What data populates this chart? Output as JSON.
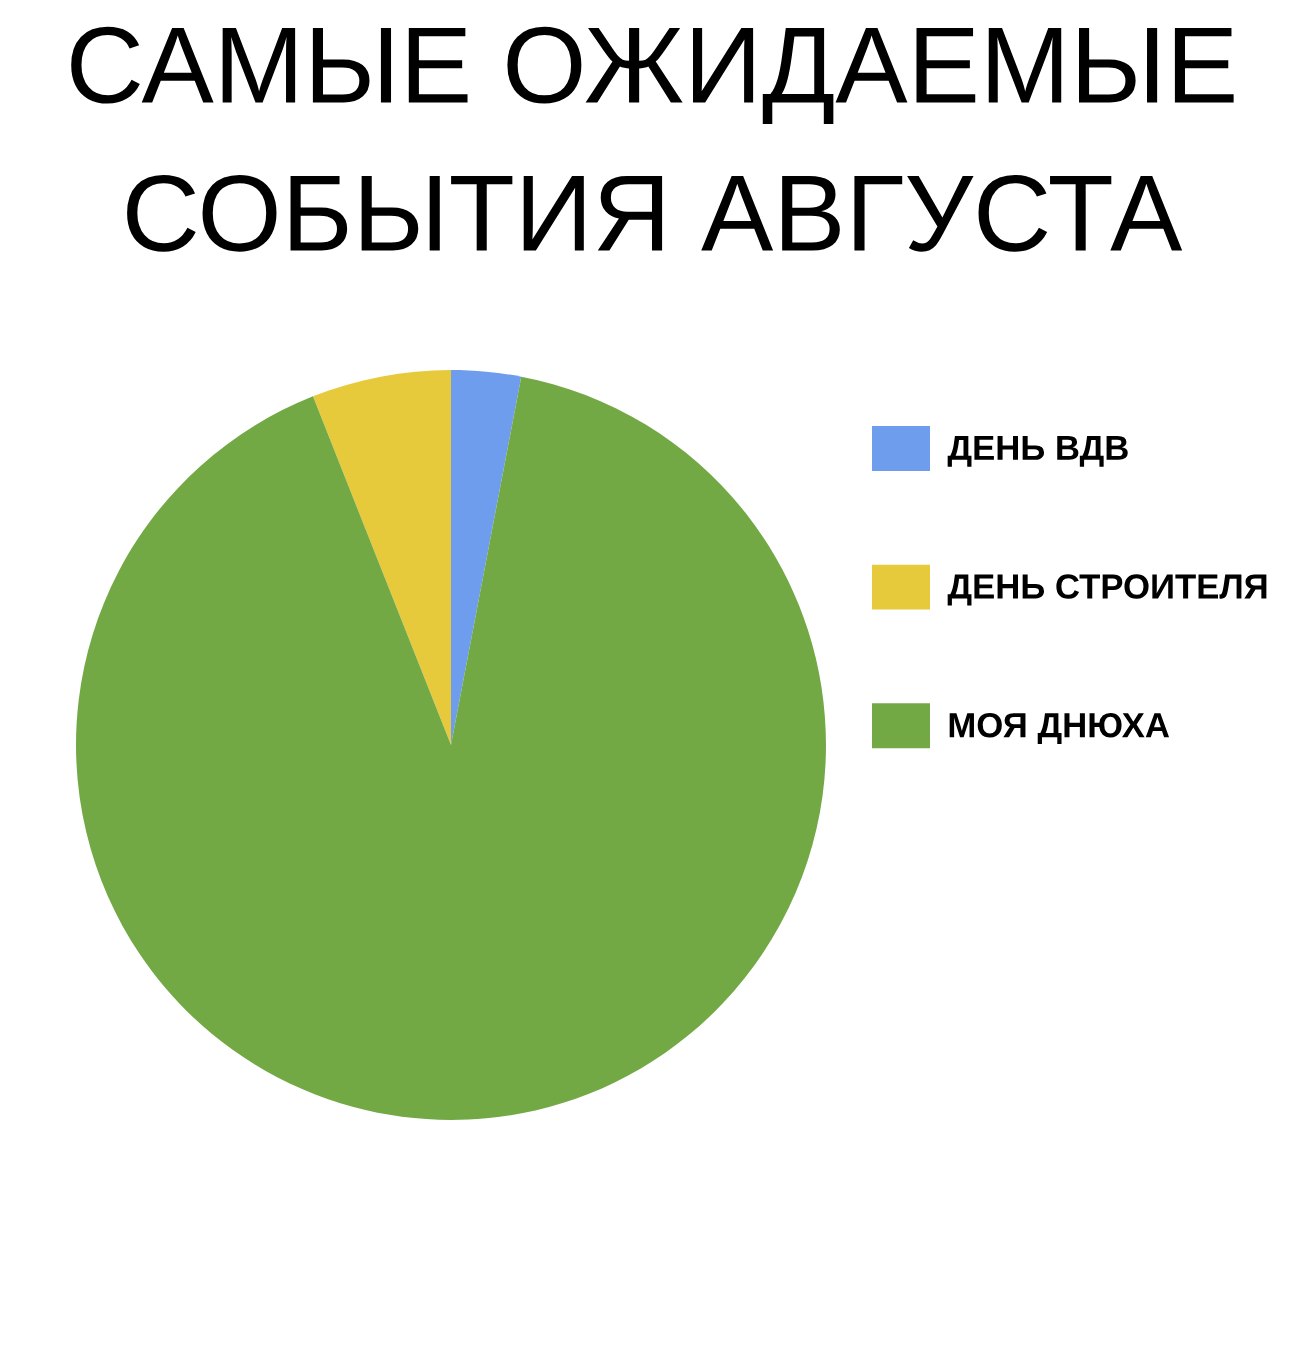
{
  "chart_data": {
    "type": "pie",
    "title": "САМЫЕ ОЖИДАЕМЫЕ\nСОБЫТИЯ АВГУСТА",
    "categories": [
      "ДЕНЬ ВДВ",
      "ДЕНЬ СТРОИТЕЛЯ",
      "МОЯ ДНЮХА"
    ],
    "values": [
      3,
      6,
      91
    ],
    "colors": [
      "#6f9ded",
      "#e7c93c",
      "#73a945"
    ],
    "legend": "top right"
  }
}
